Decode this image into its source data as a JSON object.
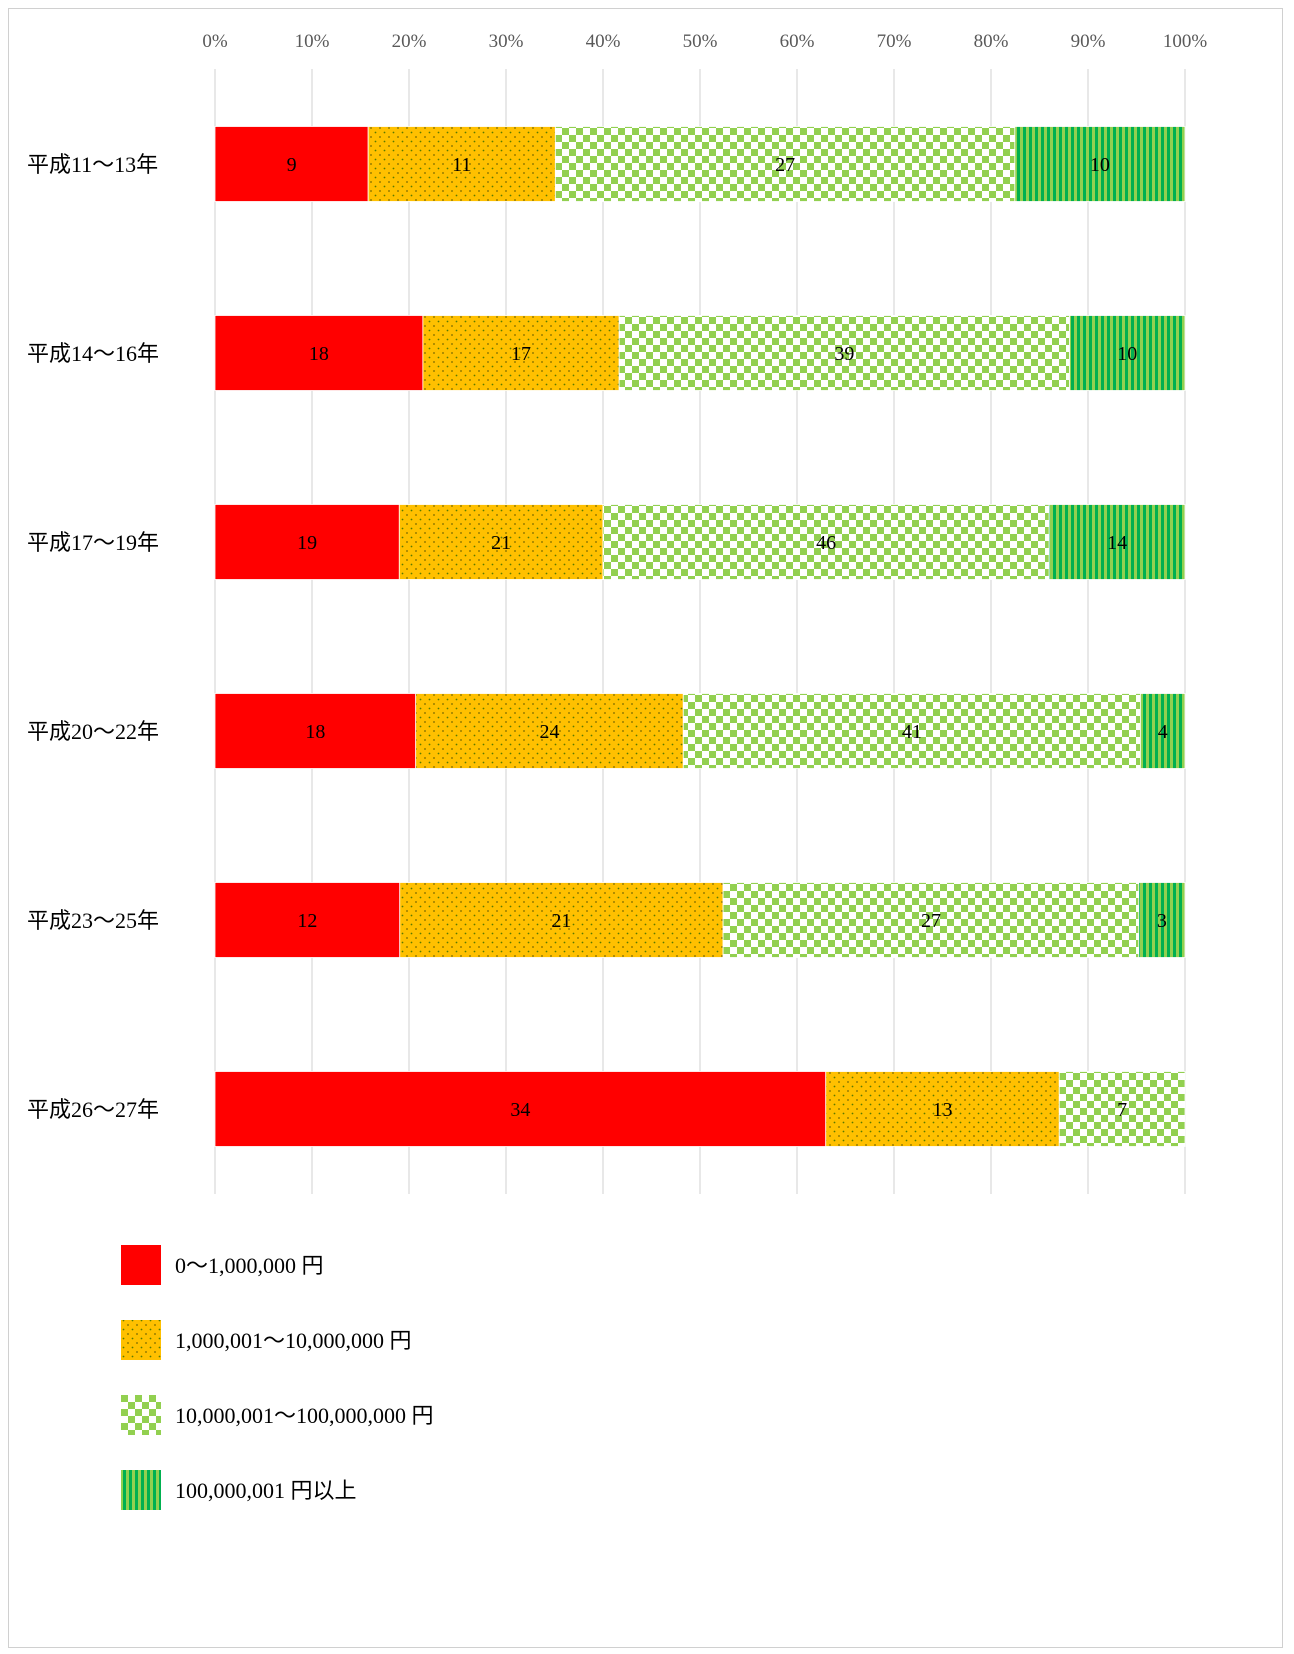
{
  "chart_data": {
    "type": "bar",
    "orientation": "horizontal",
    "stacked": "percent",
    "title": "",
    "xlabel": "",
    "ylabel": "",
    "xlim": [
      0,
      100
    ],
    "x_ticks": [
      "0%",
      "10%",
      "20%",
      "30%",
      "40%",
      "50%",
      "60%",
      "70%",
      "80%",
      "90%",
      "100%"
    ],
    "grid": true,
    "legend_position": "bottom",
    "categories": [
      "平成11～13年",
      "平成14～16年",
      "平成17～19年",
      "平成20～22年",
      "平成23～25年",
      "平成26～27年"
    ],
    "series": [
      {
        "name": "0～1,000,000 円",
        "values": [
          9,
          18,
          19,
          18,
          12,
          34
        ],
        "color": "#ff0000",
        "pattern": "solid"
      },
      {
        "name": "1,000,001～10,000,000 円",
        "values": [
          11,
          17,
          21,
          24,
          21,
          13
        ],
        "color": "#ffc000",
        "pattern": "dots"
      },
      {
        "name": "10,000,001～100,000,000 円",
        "values": [
          27,
          39,
          46,
          41,
          27,
          7
        ],
        "color": "#92d050",
        "pattern": "checker"
      },
      {
        "name": "100,000,001 円以上",
        "values": [
          10,
          10,
          14,
          4,
          3,
          0
        ],
        "color": "#00b050",
        "pattern": "vertical-stripes"
      }
    ]
  }
}
